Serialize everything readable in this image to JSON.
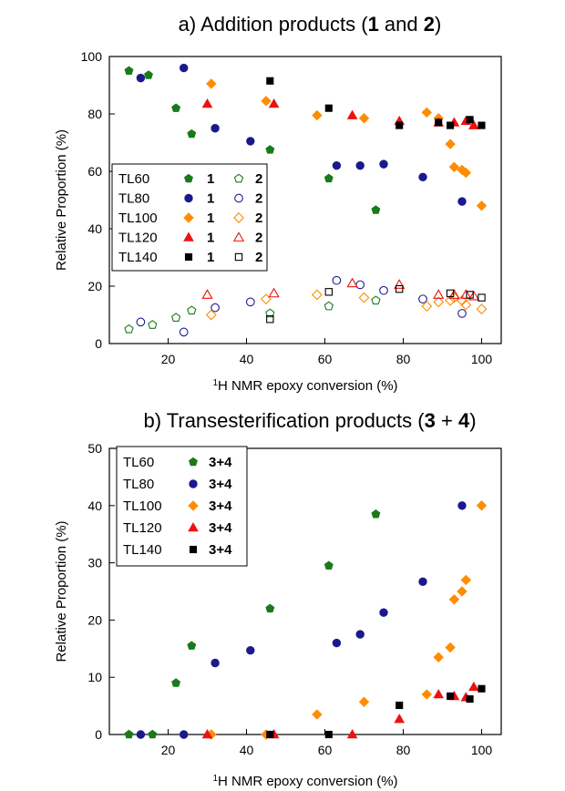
{
  "colors": {
    "TL60": "#1a7a1a",
    "TL80": "#1a1a8c",
    "TL100": "#ff8c00",
    "TL120": "#ee1111",
    "TL140": "#000000"
  },
  "chart_data": [
    {
      "type": "scatter",
      "title": {
        "prefix": "a) Addition products (",
        "b1": "1",
        "mid": " and ",
        "b2": "2",
        "suffix": ")"
      },
      "xlabel": {
        "sup": "1",
        "main": "H NMR epoxy conversion (%)"
      },
      "ylabel": "Relative Proportion (%)",
      "xlim": [
        5,
        105
      ],
      "ylim": [
        0,
        100
      ],
      "xticks": [
        "20",
        "40",
        "60",
        "80",
        "100"
      ],
      "yticks": [
        "0",
        "20",
        "40",
        "60",
        "80",
        "100"
      ],
      "legend_position": "middle-left",
      "legend": [
        {
          "series": "TL60",
          "marker": "pentagon",
          "label1": "1",
          "label2": "2"
        },
        {
          "series": "TL80",
          "marker": "circle",
          "label1": "1",
          "label2": "2"
        },
        {
          "series": "TL100",
          "marker": "diamond",
          "label1": "1",
          "label2": "2"
        },
        {
          "series": "TL120",
          "marker": "triangle",
          "label1": "1",
          "label2": "2"
        },
        {
          "series": "TL140",
          "marker": "square",
          "label1": "1",
          "label2": "2"
        }
      ],
      "series": [
        {
          "name": "TL60",
          "product": "1",
          "marker": "pentagon",
          "filled": true,
          "x": [
            10,
            15,
            22,
            26,
            46,
            61,
            73
          ],
          "y": [
            95,
            93.5,
            82,
            73,
            67.5,
            57.5,
            46.5
          ]
        },
        {
          "name": "TL60",
          "product": "2",
          "marker": "pentagon",
          "filled": false,
          "x": [
            10,
            16,
            22,
            26,
            46,
            61,
            73
          ],
          "y": [
            5,
            6.5,
            9,
            11.5,
            10.5,
            13,
            15
          ]
        },
        {
          "name": "TL80",
          "product": "1",
          "marker": "circle",
          "filled": true,
          "x": [
            13,
            24,
            32,
            41,
            63,
            69,
            75,
            85,
            95
          ],
          "y": [
            92.5,
            96,
            75,
            70.5,
            62,
            62,
            62.5,
            58,
            49.5
          ]
        },
        {
          "name": "TL80",
          "product": "2",
          "marker": "circle",
          "filled": false,
          "x": [
            13,
            24,
            32,
            41,
            63,
            69,
            75,
            85,
            95
          ],
          "y": [
            7.5,
            4,
            12.5,
            14.5,
            22,
            20.5,
            18.5,
            15.5,
            10.5
          ]
        },
        {
          "name": "TL100",
          "product": "1",
          "marker": "diamond",
          "filled": true,
          "x": [
            31,
            45,
            58,
            70,
            86,
            89,
            92,
            93,
            95,
            96,
            100
          ],
          "y": [
            90.5,
            84.5,
            79.5,
            78.5,
            80.5,
            78.5,
            69.5,
            61.5,
            60.5,
            59.5,
            48
          ]
        },
        {
          "name": "TL100",
          "product": "2",
          "marker": "diamond",
          "filled": false,
          "x": [
            31,
            45,
            58,
            70,
            86,
            89,
            92,
            93,
            95,
            96,
            100
          ],
          "y": [
            10,
            15.5,
            17,
            16,
            13,
            14.5,
            15,
            16,
            15,
            13.5,
            12
          ]
        },
        {
          "name": "TL120",
          "product": "1",
          "marker": "triangle",
          "filled": true,
          "x": [
            30,
            47,
            67,
            79,
            89,
            93,
            96,
            98
          ],
          "y": [
            83.5,
            83.5,
            79.5,
            77.5,
            77,
            77,
            77.5,
            76
          ]
        },
        {
          "name": "TL120",
          "product": "2",
          "marker": "triangle",
          "filled": false,
          "x": [
            30,
            47,
            67,
            79,
            89,
            93,
            96,
            98
          ],
          "y": [
            17,
            17.5,
            21,
            20.5,
            17,
            17,
            17,
            16.5
          ]
        },
        {
          "name": "TL140",
          "product": "1",
          "marker": "square",
          "filled": true,
          "x": [
            46,
            61,
            79,
            89,
            92,
            97,
            100
          ],
          "y": [
            91.5,
            82,
            76,
            77,
            76,
            78,
            76
          ]
        },
        {
          "name": "TL140",
          "product": "2",
          "marker": "square",
          "filled": false,
          "x": [
            46,
            61,
            79,
            92,
            97,
            100
          ],
          "y": [
            8.5,
            18,
            19,
            17.5,
            17,
            16
          ]
        }
      ]
    },
    {
      "type": "scatter",
      "title": {
        "prefix": "b) Transesterification products (",
        "b1": "3",
        "mid": " + ",
        "b2": "4",
        "suffix": ")"
      },
      "xlabel": {
        "sup": "1",
        "main": "H NMR epoxy conversion (%)"
      },
      "ylabel": "Relative Proportion (%)",
      "xlim": [
        5,
        105
      ],
      "ylim": [
        0,
        50
      ],
      "xticks": [
        "20",
        "40",
        "60",
        "80",
        "100"
      ],
      "yticks": [
        "0",
        "10",
        "20",
        "30",
        "40",
        "50"
      ],
      "legend_position": "top-left",
      "legend": [
        {
          "series": "TL60",
          "marker": "pentagon",
          "label1": "3+4"
        },
        {
          "series": "TL80",
          "marker": "circle",
          "label1": "3+4"
        },
        {
          "series": "TL100",
          "marker": "diamond",
          "label1": "3+4"
        },
        {
          "series": "TL120",
          "marker": "triangle",
          "label1": "3+4"
        },
        {
          "series": "TL140",
          "marker": "square",
          "label1": "3+4"
        }
      ],
      "series": [
        {
          "name": "TL60",
          "marker": "pentagon",
          "filled": true,
          "x": [
            10,
            16,
            22,
            26,
            46,
            61,
            73
          ],
          "y": [
            0,
            0,
            9,
            15.5,
            22,
            29.5,
            38.5
          ]
        },
        {
          "name": "TL80",
          "marker": "circle",
          "filled": true,
          "x": [
            13,
            24,
            32,
            41,
            63,
            69,
            75,
            85,
            95
          ],
          "y": [
            0,
            0,
            12.5,
            14.7,
            16,
            17.5,
            21.3,
            26.7,
            40
          ]
        },
        {
          "name": "TL100",
          "marker": "diamond",
          "filled": true,
          "x": [
            31,
            45,
            58,
            70,
            86,
            89,
            92,
            93,
            95,
            96,
            100
          ],
          "y": [
            0,
            0,
            3.5,
            5.7,
            7,
            13.5,
            15.2,
            23.6,
            25,
            27,
            40
          ]
        },
        {
          "name": "TL120",
          "marker": "triangle",
          "filled": true,
          "x": [
            30,
            47,
            67,
            79,
            89,
            93,
            96,
            98
          ],
          "y": [
            0,
            0,
            0,
            2.7,
            7,
            6.7,
            6.5,
            8.3
          ]
        },
        {
          "name": "TL140",
          "marker": "square",
          "filled": true,
          "x": [
            46,
            61,
            79,
            92,
            97,
            100
          ],
          "y": [
            0,
            0,
            5.1,
            6.7,
            6.2,
            8
          ]
        }
      ]
    }
  ]
}
